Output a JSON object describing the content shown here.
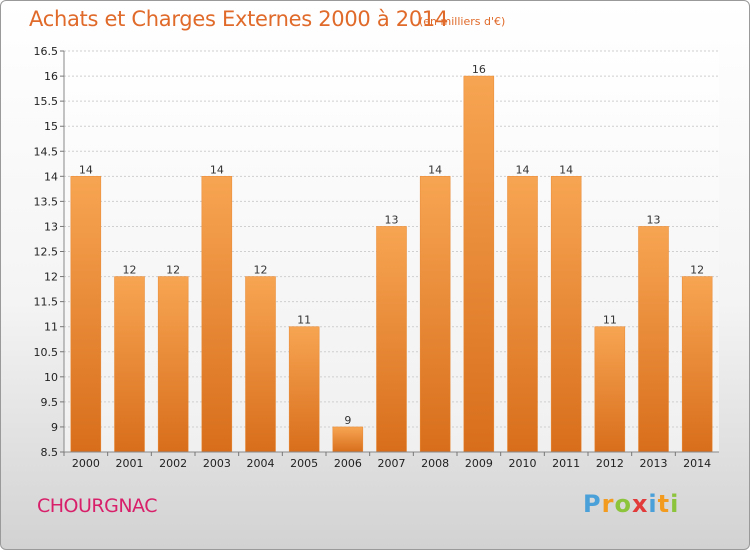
{
  "chart_data": {
    "type": "bar",
    "title": "Achats et Charges Externes 2000 à 2014",
    "subtitle": "(en milliers d'€)",
    "categories": [
      "2000",
      "2001",
      "2002",
      "2003",
      "2004",
      "2005",
      "2006",
      "2007",
      "2008",
      "2009",
      "2010",
      "2011",
      "2012",
      "2013",
      "2014"
    ],
    "values": [
      14,
      12,
      12,
      14,
      12,
      11,
      9,
      13,
      14,
      16,
      14,
      14,
      11,
      13,
      12
    ],
    "ylim": [
      8.5,
      16.5
    ],
    "yticks": [
      "8.5",
      "9",
      "9.5",
      "10",
      "10.5",
      "11",
      "11.5",
      "12",
      "12.5",
      "13",
      "13.5",
      "14",
      "14.5",
      "15",
      "15.5",
      "16",
      "16.5"
    ],
    "grid": true,
    "bar_color": "#f0893a"
  },
  "footer": {
    "commune": "CHOURGNAC",
    "logo": [
      "P",
      "r",
      "o",
      "x",
      "i",
      "t",
      "i"
    ],
    "logo_colors": [
      "#4aa0d8",
      "#f29b1e",
      "#8cc43c",
      "#e23a3a",
      "#4aa0d8",
      "#f29b1e",
      "#8cc43c"
    ]
  }
}
